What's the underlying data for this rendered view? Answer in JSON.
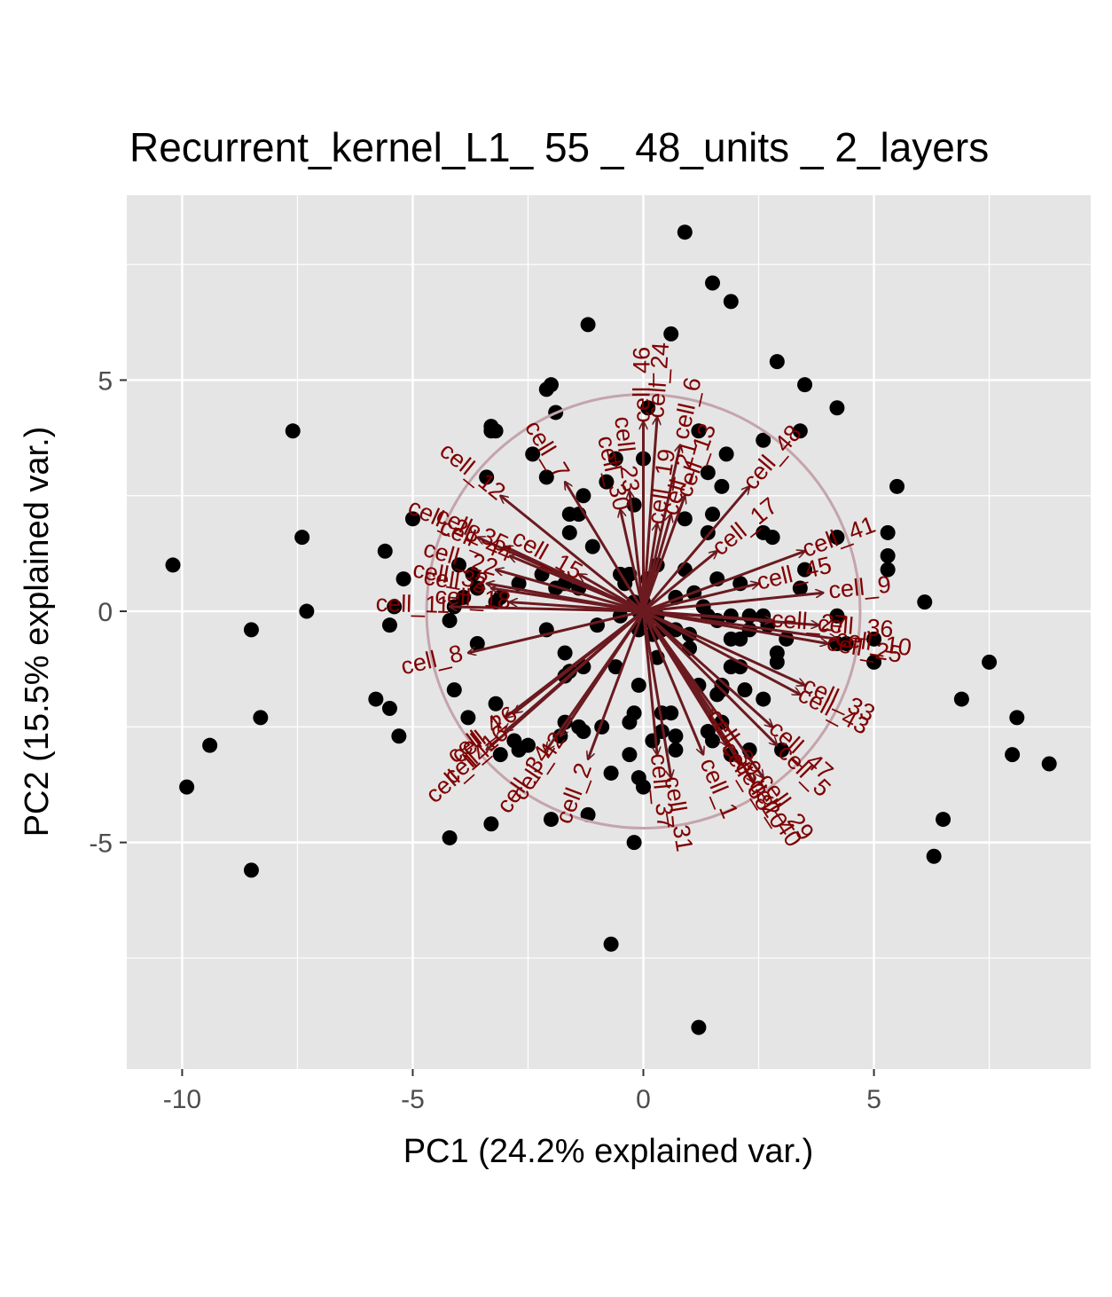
{
  "chart_data": {
    "type": "scatter",
    "title": "Recurrent_kernel_L1_ 55 _ 48_units _ 2_layers",
    "xlabel": "PC1 (24.2% explained var.)",
    "ylabel": "PC2 (15.5% explained var.)",
    "xlim": [
      -11.2,
      9.7
    ],
    "ylim": [
      -9.9,
      9.0
    ],
    "x_ticks": [
      -10,
      -5,
      0,
      5
    ],
    "x_tick_labels": [
      "-10",
      "-5",
      "0",
      "5"
    ],
    "y_ticks": [
      -5,
      0,
      5
    ],
    "y_tick_labels": [
      "-5",
      "0",
      "5"
    ],
    "grid": true,
    "legend": "none",
    "colors": {
      "panel": "#e5e5e5",
      "grid": "#ffffff",
      "point": "#000000",
      "arrow": "#6b1a1f",
      "label": "#7f0000",
      "circle": "#c4a4ab"
    },
    "circle_radius": 4.7,
    "points": [
      [
        0.9,
        8.2
      ],
      [
        1.5,
        7.1
      ],
      [
        1.9,
        6.7
      ],
      [
        -1.2,
        6.2
      ],
      [
        0.6,
        6.0
      ],
      [
        2.9,
        5.4
      ],
      [
        3.5,
        4.9
      ],
      [
        4.2,
        4.4
      ],
      [
        -2.1,
        4.8
      ],
      [
        -2.0,
        4.9
      ],
      [
        -1.9,
        4.3
      ],
      [
        0.1,
        4.4
      ],
      [
        -3.3,
        4.0
      ],
      [
        -3.2,
        3.9
      ],
      [
        -3.3,
        3.9
      ],
      [
        1.2,
        3.9
      ],
      [
        2.6,
        3.7
      ],
      [
        3.4,
        3.9
      ],
      [
        1.8,
        3.4
      ],
      [
        -2.4,
        3.4
      ],
      [
        -0.6,
        3.3
      ],
      [
        0.0,
        3.3
      ],
      [
        1.4,
        3.0
      ],
      [
        -3.4,
        2.9
      ],
      [
        -2.1,
        2.9
      ],
      [
        -0.8,
        2.8
      ],
      [
        1.7,
        2.7
      ],
      [
        -1.3,
        2.5
      ],
      [
        -1.4,
        2.1
      ],
      [
        -1.6,
        2.1
      ],
      [
        1.5,
        2.1
      ],
      [
        0.9,
        2.0
      ],
      [
        -0.2,
        2.3
      ],
      [
        -5.0,
        2.0
      ],
      [
        -1.6,
        1.7
      ],
      [
        1.4,
        1.7
      ],
      [
        2.6,
        1.7
      ],
      [
        2.8,
        1.6
      ],
      [
        4.2,
        1.6
      ],
      [
        5.5,
        2.7
      ],
      [
        5.3,
        1.7
      ],
      [
        5.3,
        1.2
      ],
      [
        5.3,
        0.9
      ],
      [
        3.5,
        0.9
      ],
      [
        -5.6,
        1.3
      ],
      [
        -1.1,
        1.4
      ],
      [
        -4.0,
        1.0
      ],
      [
        -3.7,
        0.8
      ],
      [
        -2.2,
        0.8
      ],
      [
        -0.5,
        0.8
      ],
      [
        -0.3,
        0.8
      ],
      [
        0.1,
        0.7
      ],
      [
        0.3,
        1.0
      ],
      [
        0.9,
        0.9
      ],
      [
        1.6,
        0.7
      ],
      [
        2.1,
        0.6
      ],
      [
        3.4,
        0.5
      ],
      [
        -3.6,
        0.5
      ],
      [
        -3.1,
        0.3
      ],
      [
        -2.7,
        0.6
      ],
      [
        -1.7,
        0.6
      ],
      [
        -3.9,
        0.3
      ],
      [
        -5.2,
        0.7
      ],
      [
        -5.4,
        0.1
      ],
      [
        -4.1,
        0.1
      ],
      [
        -3.2,
        0.2
      ],
      [
        -1.9,
        0.5
      ],
      [
        -1.4,
        0.5
      ],
      [
        -0.4,
        0.6
      ],
      [
        -0.2,
        0.2
      ],
      [
        -0.1,
        0.0
      ],
      [
        0.0,
        0.2
      ],
      [
        0.1,
        -0.2
      ],
      [
        0.3,
        -0.1
      ],
      [
        0.7,
        0.3
      ],
      [
        1.1,
        0.4
      ],
      [
        1.3,
        0.1
      ],
      [
        1.6,
        -0.2
      ],
      [
        1.9,
        -0.1
      ],
      [
        2.3,
        -0.1
      ],
      [
        2.6,
        -0.1
      ],
      [
        2.7,
        -0.3
      ],
      [
        3.1,
        -0.6
      ],
      [
        4.2,
        -0.1
      ],
      [
        6.1,
        0.2
      ],
      [
        7.5,
        -1.1
      ],
      [
        5.0,
        -0.6
      ],
      [
        4.4,
        -0.7
      ],
      [
        5.0,
        -1.1
      ],
      [
        4.2,
        -0.7
      ],
      [
        2.9,
        -0.9
      ],
      [
        2.9,
        -1.1
      ],
      [
        2.3,
        -0.4
      ],
      [
        2.1,
        -0.6
      ],
      [
        1.9,
        -0.6
      ],
      [
        1.4,
        -0.1
      ],
      [
        1.0,
        -0.5
      ],
      [
        0.7,
        -0.4
      ],
      [
        0.4,
        -0.4
      ],
      [
        0.2,
        -0.5
      ],
      [
        -0.1,
        -0.4
      ],
      [
        -0.5,
        -0.1
      ],
      [
        -1.0,
        -0.3
      ],
      [
        -2.1,
        -0.4
      ],
      [
        -3.6,
        -0.7
      ],
      [
        -4.2,
        -0.2
      ],
      [
        -5.5,
        -0.3
      ],
      [
        -1.7,
        -0.9
      ],
      [
        -1.3,
        -1.2
      ],
      [
        -1.6,
        -1.3
      ],
      [
        -0.6,
        -1.2
      ],
      [
        0.3,
        -1.0
      ],
      [
        1.0,
        -0.8
      ],
      [
        1.9,
        -1.2
      ],
      [
        2.1,
        -1.2
      ],
      [
        1.7,
        -1.6
      ],
      [
        1.7,
        -1.7
      ],
      [
        2.2,
        -1.7
      ],
      [
        2.6,
        -1.9
      ],
      [
        1.6,
        -1.8
      ],
      [
        1.2,
        -1.6
      ],
      [
        -1.7,
        -1.4
      ],
      [
        -4.1,
        -1.7
      ],
      [
        -5.8,
        -1.9
      ],
      [
        -5.5,
        -2.1
      ],
      [
        -5.3,
        -2.7
      ],
      [
        -3.2,
        -2.0
      ],
      [
        -3.8,
        -2.3
      ],
      [
        -2.8,
        -2.8
      ],
      [
        -2.5,
        -2.9
      ],
      [
        -1.7,
        -2.4
      ],
      [
        -1.4,
        -2.5
      ],
      [
        -1.3,
        -2.6
      ],
      [
        -1.8,
        -2.7
      ],
      [
        -0.9,
        -2.5
      ],
      [
        -0.1,
        -1.6
      ],
      [
        -0.2,
        -2.2
      ],
      [
        0.4,
        -2.2
      ],
      [
        0.6,
        -2.2
      ],
      [
        0.4,
        -2.6
      ],
      [
        0.7,
        -2.7
      ],
      [
        0.2,
        -2.8
      ],
      [
        0.7,
        -3.0
      ],
      [
        1.4,
        -2.6
      ],
      [
        1.7,
        -2.4
      ],
      [
        1.5,
        -2.8
      ],
      [
        1.9,
        -3.1
      ],
      [
        2.3,
        -3.0
      ],
      [
        3.0,
        -3.0
      ],
      [
        -0.3,
        -2.4
      ],
      [
        -0.3,
        -3.1
      ],
      [
        -0.7,
        -3.5
      ],
      [
        -0.1,
        -3.6
      ],
      [
        0.0,
        -3.8
      ],
      [
        -3.1,
        -3.1
      ],
      [
        -2.7,
        -3.0
      ],
      [
        -2.0,
        -4.5
      ],
      [
        -1.2,
        -4.4
      ],
      [
        -3.3,
        -4.6
      ],
      [
        -4.2,
        -4.9
      ],
      [
        -0.2,
        -5.0
      ],
      [
        -0.7,
        -7.2
      ],
      [
        1.2,
        -9.0
      ],
      [
        6.5,
        -4.5
      ],
      [
        6.3,
        -5.3
      ],
      [
        6.9,
        -1.9
      ],
      [
        8.1,
        -2.3
      ],
      [
        8.0,
        -3.1
      ],
      [
        8.8,
        -3.3
      ],
      [
        -10.2,
        1.0
      ],
      [
        -7.6,
        3.9
      ],
      [
        -7.4,
        1.6
      ],
      [
        -7.3,
        0.0
      ],
      [
        -8.5,
        -0.4
      ],
      [
        -8.3,
        -2.3
      ],
      [
        -9.4,
        -2.9
      ],
      [
        -9.9,
        -3.8
      ],
      [
        -8.5,
        -5.6
      ]
    ],
    "loadings": [
      {
        "label": "cell_1",
        "x": 1.3,
        "y": -3.1
      },
      {
        "label": "cell_2",
        "x": -1.2,
        "y": -3.2
      },
      {
        "label": "cell_3",
        "x": -3.3,
        "y": 0.5
      },
      {
        "label": "cell_4",
        "x": -3.0,
        "y": -2.3
      },
      {
        "label": "cell_5",
        "x": 2.9,
        "y": -2.9
      },
      {
        "label": "cell_6",
        "x": 0.8,
        "y": 3.6
      },
      {
        "label": "cell_7",
        "x": -1.7,
        "y": 2.8
      },
      {
        "label": "cell_8",
        "x": -3.8,
        "y": -0.9
      },
      {
        "label": "cell_9",
        "x": 3.9,
        "y": 0.4
      },
      {
        "label": "cell_10",
        "x": 4.2,
        "y": -0.6
      },
      {
        "label": "cell_11",
        "x": -4.2,
        "y": 0.1
      },
      {
        "label": "cell_12",
        "x": -3.1,
        "y": 2.5
      },
      {
        "label": "cell_13",
        "x": 0.9,
        "y": 2.5
      },
      {
        "label": "cell_14",
        "x": -3.4,
        "y": -3.0
      },
      {
        "label": "cell_15",
        "x": -1.4,
        "y": 0.8
      },
      {
        "label": "cell_16",
        "x": -3.0,
        "y": -2.6
      },
      {
        "label": "cell_17",
        "x": 1.6,
        "y": 1.3
      },
      {
        "label": "cell_18",
        "x": -2.9,
        "y": 0.2
      },
      {
        "label": "cell_19",
        "x": 0.3,
        "y": 1.9
      },
      {
        "label": "cell_20",
        "x": 2.1,
        "y": -3.3
      },
      {
        "label": "cell_21",
        "x": 0.6,
        "y": 2.1
      },
      {
        "label": "cell_22",
        "x": -3.2,
        "y": 0.9
      },
      {
        "label": "cell_23",
        "x": -0.3,
        "y": 2.6
      },
      {
        "label": "cell_24",
        "x": 0.3,
        "y": 4.2
      },
      {
        "label": "cell_25",
        "x": 4.0,
        "y": -0.7
      },
      {
        "label": "cell_26",
        "x": -2.8,
        "y": -2.2
      },
      {
        "label": "cell_27",
        "x": 2.8,
        "y": -0.2
      },
      {
        "label": "cell_28",
        "x": -3.6,
        "y": 1.6
      },
      {
        "label": "cell_29",
        "x": 2.6,
        "y": -3.6
      },
      {
        "label": "cell_30",
        "x": -0.5,
        "y": 2.2
      },
      {
        "label": "cell_31",
        "x": 0.6,
        "y": -3.6
      },
      {
        "label": "cell_32",
        "x": -3.4,
        "y": 0.6
      },
      {
        "label": "cell_33",
        "x": 3.5,
        "y": -1.6
      },
      {
        "label": "cell_34",
        "x": -2.1,
        "y": -3.0
      },
      {
        "label": "cell_35",
        "x": -3.0,
        "y": 1.4
      },
      {
        "label": "cell_36",
        "x": 3.8,
        "y": -0.3
      },
      {
        "label": "cell_37",
        "x": 0.3,
        "y": -3.1
      },
      {
        "label": "cell_38",
        "x": 1.8,
        "y": -2.9
      },
      {
        "label": "cell_39",
        "x": 1.5,
        "y": -2.2
      },
      {
        "label": "cell_40",
        "x": 2.4,
        "y": -3.7
      },
      {
        "label": "cell_41",
        "x": 3.5,
        "y": 1.3
      },
      {
        "label": "cell_42",
        "x": -1.8,
        "y": -2.7
      },
      {
        "label": "cell_43",
        "x": 3.4,
        "y": -1.8
      },
      {
        "label": "cell_44",
        "x": -2.9,
        "y": 1.2
      },
      {
        "label": "cell_45",
        "x": 2.5,
        "y": 0.6
      },
      {
        "label": "cell_46",
        "x": 0.0,
        "y": 4.1
      },
      {
        "label": "cell_47",
        "x": 2.8,
        "y": -2.5
      },
      {
        "label": "cell_48",
        "x": 2.3,
        "y": 2.7
      }
    ]
  }
}
